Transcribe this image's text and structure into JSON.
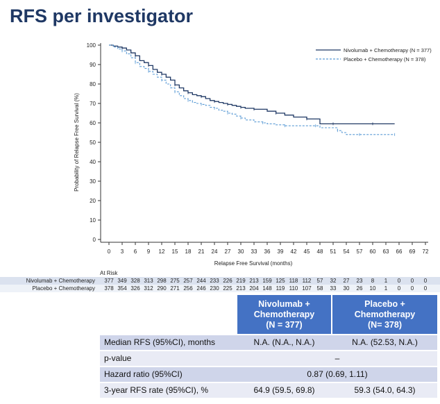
{
  "page_title": "RFS per investigator",
  "chart_data": {
    "type": "line",
    "xlabel": "Relapse Free Survival (months)",
    "ylabel": "Probability of Relapse Free Survival (%)",
    "xlim": [
      0,
      72
    ],
    "ylim": [
      0,
      100
    ],
    "xticks": [
      0,
      3,
      6,
      9,
      12,
      15,
      18,
      21,
      24,
      27,
      30,
      33,
      36,
      39,
      42,
      45,
      48,
      51,
      54,
      57,
      60,
      63,
      66,
      69,
      72
    ],
    "yticks": [
      0,
      10,
      20,
      30,
      40,
      50,
      60,
      70,
      80,
      90,
      100
    ],
    "legend_position": "top-right",
    "series": [
      {
        "name": "Nivolumab + Chemotherapy (N = 377)",
        "color": "#1f3864",
        "style": "solid",
        "x": [
          0,
          1,
          2,
          3,
          4,
          5,
          6,
          7,
          8,
          9,
          10,
          11,
          12,
          13,
          14,
          15,
          16,
          17,
          18,
          19,
          20,
          21,
          22,
          23,
          24,
          25,
          26,
          27,
          28,
          29,
          30,
          31,
          32,
          33,
          34,
          36,
          38,
          40,
          42,
          45,
          47,
          48,
          51,
          54,
          57,
          60,
          63,
          65
        ],
        "y": [
          100,
          99.5,
          99,
          98.5,
          97.5,
          96,
          94.5,
          92,
          91,
          89.5,
          87.5,
          86,
          85,
          83.5,
          82,
          79.5,
          78,
          76.5,
          75.5,
          74.5,
          74,
          73.5,
          72.5,
          71.5,
          71,
          70.5,
          70,
          69.5,
          69,
          68.5,
          68,
          67.5,
          67.5,
          67,
          67,
          66,
          65,
          64,
          63,
          62,
          62,
          59.5,
          59.5,
          59.5,
          59.5,
          59.5,
          59.5,
          59.5
        ]
      },
      {
        "name": "Placebo + Chemotherapy (N = 378)",
        "color": "#5b9bd5",
        "style": "dashed",
        "x": [
          0,
          1,
          2,
          3,
          4,
          5,
          6,
          7,
          8,
          9,
          10,
          11,
          12,
          13,
          14,
          15,
          16,
          17,
          18,
          19,
          20,
          21,
          22,
          23,
          24,
          25,
          26,
          27,
          28,
          29,
          30,
          31,
          33,
          35,
          36,
          38,
          40,
          42,
          45,
          47,
          48,
          51,
          52,
          53,
          54,
          57,
          60,
          63,
          65
        ],
        "y": [
          100,
          99,
          98,
          97,
          95.5,
          93.5,
          91,
          89,
          88,
          86.5,
          85,
          83.5,
          82,
          80,
          78,
          76,
          74,
          72.5,
          71.5,
          70.5,
          70,
          69.5,
          69,
          68,
          67.5,
          66.5,
          66,
          65,
          64.5,
          63.5,
          62.5,
          61.5,
          60.5,
          60,
          59.5,
          59,
          58.5,
          58.5,
          58.5,
          58.5,
          57.5,
          57.5,
          56,
          55,
          54,
          54,
          54,
          54,
          54
        ]
      }
    ]
  },
  "at_risk": {
    "header": "At Risk",
    "months": [
      0,
      3,
      6,
      9,
      12,
      15,
      18,
      21,
      24,
      27,
      30,
      33,
      36,
      39,
      42,
      45,
      48,
      51,
      54,
      57,
      60,
      63,
      66,
      69,
      72
    ],
    "rows": [
      {
        "label": "Nivolumab + Chemotherapy",
        "values": [
          "377",
          "349",
          "328",
          "313",
          "298",
          "275",
          "257",
          "244",
          "233",
          "226",
          "219",
          "213",
          "159",
          "125",
          "118",
          "112",
          "57",
          "32",
          "27",
          "23",
          "8",
          "1",
          "0",
          "0",
          "0"
        ]
      },
      {
        "label": "Placebo + Chemotherapy",
        "values": [
          "378",
          "354",
          "326",
          "312",
          "290",
          "271",
          "256",
          "246",
          "230",
          "225",
          "213",
          "204",
          "148",
          "119",
          "110",
          "107",
          "58",
          "33",
          "30",
          "26",
          "10",
          "1",
          "0",
          "0",
          "0"
        ]
      }
    ]
  },
  "summary_table": {
    "col_headers": [
      "Nivolumab + Chemotherapy (N = 377)",
      "Placebo + Chemotherapy (N= 378)"
    ],
    "col_header_lines": [
      [
        "Nivolumab +",
        "Chemotherapy",
        "(N = 377)"
      ],
      [
        "Placebo +",
        "Chemotherapy",
        "(N= 378)"
      ]
    ],
    "rows": [
      {
        "label": "Median RFS (95%CI), months",
        "nivo": "N.A. (N.A., N.A.)",
        "placebo": "N.A. (52.53, N.A.)"
      },
      {
        "label": "p-value",
        "combined": "–"
      },
      {
        "label": "Hazard ratio (95%CI)",
        "combined": "0.87 (0.69, 1.11)"
      },
      {
        "label": "3-year RFS rate (95%CI), %",
        "nivo": "64.9 (59.5, 69.8)",
        "placebo": "59.3 (54.0, 64.3)"
      }
    ]
  }
}
